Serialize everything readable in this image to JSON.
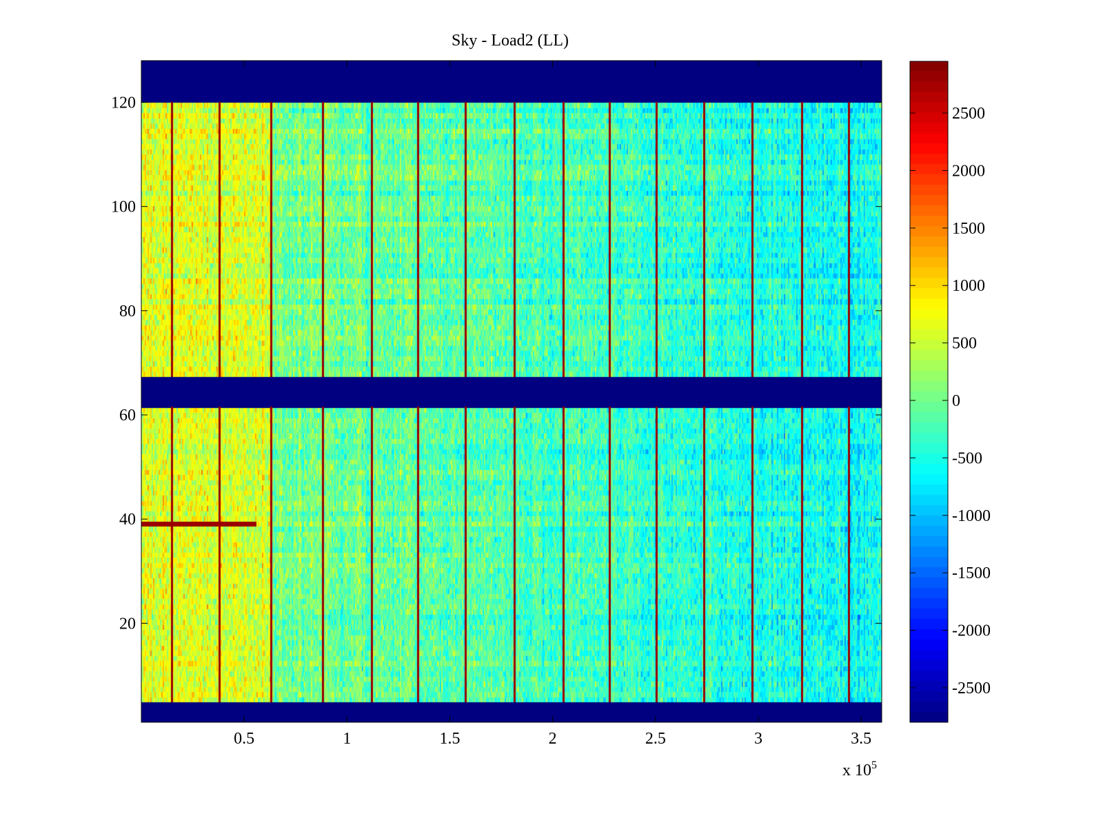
{
  "chart_data": {
    "type": "heatmap",
    "title": "Sky - Load2 (LL)",
    "xlabel": "",
    "ylabel": "",
    "x_multiplier": "x 10",
    "x_multiplier_exponent": "5",
    "xlim": [
      0,
      3.6
    ],
    "ylim": [
      1,
      128
    ],
    "x_ticks": [
      0.5,
      1,
      1.5,
      2,
      2.5,
      3,
      3.5
    ],
    "x_tick_labels": [
      "0.5",
      "1",
      "1.5",
      "2",
      "2.5",
      "3",
      "3.5"
    ],
    "y_ticks": [
      20,
      40,
      60,
      80,
      100,
      120
    ],
    "y_tick_labels": [
      "20",
      "40",
      "60",
      "80",
      "100",
      "120"
    ],
    "colormap": "jet",
    "clim": [
      -2800,
      2950
    ],
    "colorbar_ticks": [
      2500,
      2000,
      1500,
      1000,
      500,
      0,
      -500,
      -1000,
      -1500,
      -2000,
      -2500
    ],
    "colorbar_tick_labels": [
      "2500",
      "2000",
      "1500",
      "1000",
      "500",
      "0",
      "-500",
      "-1000",
      "-1500",
      "-2000",
      "-2500"
    ],
    "masked_row_bands": [
      [
        1,
        4
      ],
      [
        62,
        67.5
      ],
      [
        121,
        128
      ]
    ],
    "masked_value": -2800,
    "vertical_spike_x": [
      0.146,
      0.38,
      0.63,
      0.88,
      1.12,
      1.345,
      1.575,
      1.815,
      2.05,
      2.275,
      2.505,
      2.735,
      2.97,
      3.21,
      3.44
    ],
    "spike_value": 2800,
    "hot_row_segment": {
      "row": 39,
      "x_range": [
        0,
        0.56
      ],
      "value": 2800
    },
    "warm_region": {
      "x_range": [
        0,
        0.63
      ],
      "mean_value": 800
    },
    "field_mean_start": 200,
    "field_mean_end": -600,
    "noise_amplitude": 600,
    "grid": false
  }
}
